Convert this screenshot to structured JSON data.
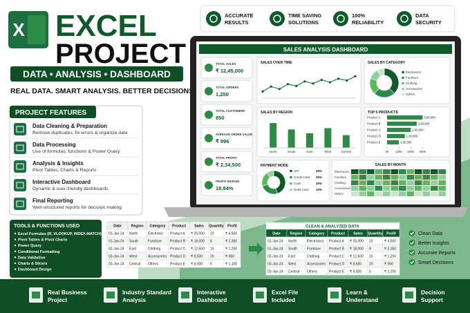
{
  "header": {
    "logo": "X",
    "title_line1": "EXCEL",
    "title_line2": "PROJECT",
    "banner": "DATA • ANALYSIS • DASHBOARD",
    "tagline": "REAL DATA. SMART ANALYSIS. BETTER DECISIONS."
  },
  "badges": [
    {
      "lines": [
        "ACCURATE",
        "RESULTS"
      ]
    },
    {
      "lines": [
        "TIME SAVING",
        "SOLUTIONS"
      ]
    },
    {
      "lines": [
        "100%",
        "RELIABILITY"
      ]
    },
    {
      "lines": [
        "DATA",
        "SECURITY"
      ]
    }
  ],
  "features": {
    "title": "PROJECT FEATURES",
    "items": [
      {
        "title": "Data Cleaning & Preparation",
        "desc": "Remove duplicates, fix errors & organize data"
      },
      {
        "title": "Data Processing",
        "desc": "Use of formulas, functions & Power Query"
      },
      {
        "title": "Analysis & Insights",
        "desc": "Pivot Tables, Charts & Reports"
      },
      {
        "title": "Interactive Dashboard",
        "desc": "Dynamic & user-friendly dashboards"
      },
      {
        "title": "Final Reporting",
        "desc": "Well-structured reports for decision making"
      }
    ]
  },
  "tools": {
    "title": "TOOLS & FUNCTIONS USED",
    "items": [
      "Excel Formulas (IF, VLOOKUP, INDEX-MATCH)",
      "Pivot Tables & Pivot Charts",
      "Power Query",
      "Conditional Formatting",
      "Data Validation",
      "Charts & Slicers",
      "Dashboard Design"
    ]
  },
  "dashboard": {
    "title": "SALES ANALYSIS DASHBOARD",
    "kpis": [
      {
        "label": "TOTAL SALES",
        "value": "₹ 12,45,000"
      },
      {
        "label": "TOTAL ORDERS",
        "value": "1,250"
      },
      {
        "label": "TOTAL CUSTOMERS",
        "value": "850"
      },
      {
        "label": "AVERAGE ORDER VALUE",
        "value": "₹ 996"
      },
      {
        "label": "TOTAL PROFIT",
        "value": "₹ 2,34,500"
      },
      {
        "label": "PROFIT MARGIN",
        "value": "18.84%"
      }
    ],
    "sales_over_time": {
      "title": "SALES OVER TIME",
      "values": [
        22,
        38,
        30,
        46,
        40,
        55,
        48,
        60,
        52,
        64,
        58,
        72
      ],
      "ylim": [
        0,
        100
      ]
    },
    "sales_by_category": {
      "title": "SALES BY CATEGORY",
      "categories": [
        "Electronics",
        "Furniture",
        "Clothing",
        "Accessories",
        "Others"
      ],
      "values": [
        38,
        24,
        18,
        12,
        8
      ]
    },
    "sales_by_region": {
      "title": "SALES BY REGION",
      "categories": [
        "North",
        "South",
        "East",
        "West",
        "Central"
      ],
      "values": [
        78,
        58,
        46,
        62,
        40
      ],
      "ylim": [
        0,
        100
      ]
    },
    "top_products": {
      "title": "TOP 5 PRODUCTS",
      "categories": [
        "Product A",
        "Product B",
        "Product C",
        "Product D",
        "Product E"
      ],
      "values": [
        300000,
        250000,
        200000,
        150000,
        100000
      ],
      "value_labels": [
        "3,00,000",
        "2,50,000",
        "2,00,000",
        "1,50,000",
        "1,00,000"
      ],
      "xlim": [
        0,
        350000
      ],
      "xticks": [
        {
          "value": 0,
          "label": "0K"
        },
        {
          "value": 100000,
          "label": "100K"
        },
        {
          "value": 200000,
          "label": "200K"
        },
        {
          "value": 300000,
          "label": "300K"
        }
      ]
    },
    "payment_mode": {
      "title": "PAYMENT MODE",
      "categories": [
        "UPI",
        "Credit Card",
        "Cash",
        "Debit Card"
      ],
      "values": [
        45,
        25,
        20,
        10
      ],
      "value_labels": [
        "45%",
        "25%",
        "20%",
        "10%"
      ]
    },
    "sales_by_month": {
      "title": "SALES BY MONTH",
      "rows": [
        "Electronics",
        "Furniture",
        "Clothing",
        "Accessories",
        "Others"
      ],
      "values": [
        [
          5,
          4,
          5,
          3,
          4,
          5,
          4,
          3,
          5,
          4,
          5,
          4
        ],
        [
          3,
          4,
          2,
          3,
          4,
          3,
          2,
          4,
          3,
          4,
          3,
          2
        ],
        [
          4,
          3,
          4,
          2,
          3,
          4,
          3,
          2,
          4,
          3,
          2,
          3
        ],
        [
          2,
          3,
          2,
          4,
          2,
          3,
          4,
          2,
          3,
          2,
          4,
          3
        ],
        [
          1,
          2,
          3,
          1,
          2,
          1,
          2,
          3,
          1,
          2,
          1,
          2
        ]
      ]
    }
  },
  "raw_table": {
    "columns": [
      "Date",
      "Region",
      "Category",
      "Product",
      "Sales",
      "Quantity",
      "Profit"
    ],
    "rows": [
      [
        "01-Jan-24",
        "North",
        "Electronic",
        "Product A",
        "₹ 25,000",
        "10",
        "₹ 4,500"
      ],
      [
        "01-Jan-24",
        "South",
        "Furniture",
        "Product B",
        "₹ 18,000",
        "8",
        "₹ 2,350"
      ],
      [
        "02-Jan-24",
        "East",
        "Clothing",
        "Product C",
        "₹ 12,500",
        "15",
        "₹ 1,200"
      ],
      [
        "03-Jan-24",
        "West",
        "Accessories",
        "Product D",
        "₹ 8,500",
        "20",
        "₹ 950"
      ],
      [
        "03-Jan-24",
        "Central",
        "Others",
        "Product E",
        "₹ 9,000",
        "5",
        "₹ 1,100"
      ]
    ]
  },
  "clean_table": {
    "title": "CLEAN & ANALYZED DATA",
    "columns": [
      "Date",
      "Region",
      "Category",
      "Product",
      "Sales",
      "Quantity",
      "Profit"
    ],
    "rows": [
      [
        "01-Jan-24",
        "North",
        "Electronics",
        "Product A",
        "₹ 25,000",
        "10",
        "₹ 4,500"
      ],
      [
        "01-Jan-24",
        "South",
        "Furniture",
        "Product B",
        "₹ 18,000",
        "8",
        "₹ 2,350"
      ],
      [
        "02-Jan-24",
        "East",
        "Clothing",
        "Product C",
        "₹ 12,500",
        "15",
        "₹ 1,200"
      ],
      [
        "03-Jan-24",
        "West",
        "Accessories",
        "Product D",
        "₹ 8,500",
        "20",
        "₹ 950"
      ],
      [
        "03-Jan-24",
        "Central",
        "Others",
        "Product E",
        "₹ 9,000",
        "5",
        "₹ 1,100"
      ]
    ]
  },
  "checklist": [
    "Clean Data",
    "Better Insights",
    "Accurate Reports",
    "Smart Decisions"
  ],
  "footer": [
    {
      "lines": [
        "Real Business",
        "Project"
      ]
    },
    {
      "lines": [
        "Industry Standard",
        "Analysis"
      ]
    },
    {
      "lines": [
        "Interactive",
        "Dashboard"
      ]
    },
    {
      "lines": [
        "Excel File",
        "Included"
      ]
    },
    {
      "lines": [
        "Learn &",
        "Understand"
      ]
    },
    {
      "lines": [
        "Decision",
        "Support"
      ]
    }
  ]
}
